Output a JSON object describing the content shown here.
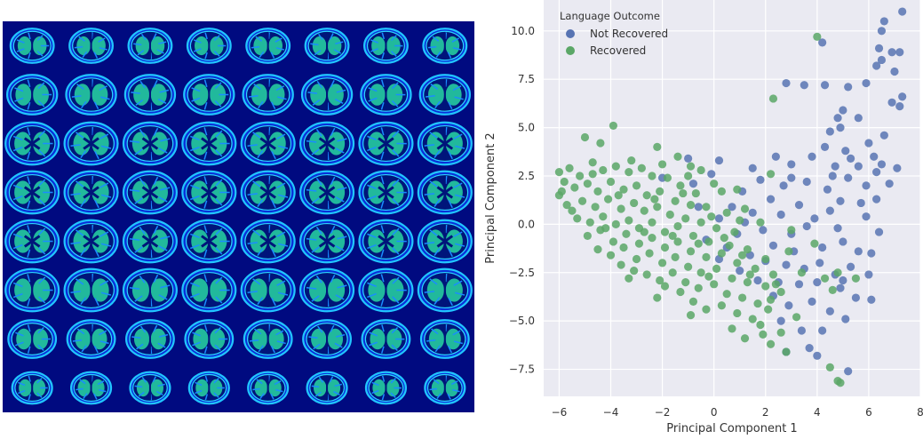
{
  "left_panel": {
    "montage": {
      "rows": 8,
      "cols": 8,
      "colormap": "jet"
    }
  },
  "chart_data": {
    "type": "scatter",
    "xlabel": "Principal Component 1",
    "ylabel": "Principal Component 2",
    "xlim": [
      -6.6,
      8.0
    ],
    "ylim": [
      -8.9,
      11.6
    ],
    "xticks": [
      -6,
      -4,
      -2,
      0,
      2,
      4,
      6,
      8
    ],
    "yticks": [
      -7.5,
      -5.0,
      -2.5,
      0.0,
      2.5,
      5.0,
      7.5,
      10.0
    ],
    "xtick_labels": [
      "−6",
      "−4",
      "−2",
      "0",
      "2",
      "4",
      "6",
      "8"
    ],
    "ytick_labels": [
      "−7.5",
      "−5.0",
      "−2.5",
      "0.0",
      "2.5",
      "5.0",
      "7.5",
      "10.0"
    ],
    "grid": true,
    "legend_title": "Language Outcome",
    "legend_position": "top-left",
    "series": [
      {
        "name": "Not Recovered",
        "color": "#5874b3",
        "points": [
          [
            7.3,
            11.0
          ],
          [
            6.6,
            10.5
          ],
          [
            6.5,
            10.0
          ],
          [
            6.4,
            9.1
          ],
          [
            6.9,
            8.9
          ],
          [
            7.2,
            8.9
          ],
          [
            6.5,
            8.5
          ],
          [
            6.3,
            8.2
          ],
          [
            7.0,
            7.9
          ],
          [
            4.2,
            9.4
          ],
          [
            5.9,
            7.3
          ],
          [
            5.2,
            7.1
          ],
          [
            7.3,
            6.6
          ],
          [
            3.5,
            7.2
          ],
          [
            2.8,
            7.3
          ],
          [
            4.3,
            7.2
          ],
          [
            6.9,
            6.3
          ],
          [
            7.2,
            6.1
          ],
          [
            5.0,
            5.9
          ],
          [
            4.8,
            5.5
          ],
          [
            5.6,
            5.5
          ],
          [
            4.9,
            5.0
          ],
          [
            4.5,
            4.8
          ],
          [
            4.3,
            4.0
          ],
          [
            6.6,
            4.6
          ],
          [
            6.0,
            4.2
          ],
          [
            3.8,
            3.5
          ],
          [
            5.1,
            3.8
          ],
          [
            5.3,
            3.4
          ],
          [
            6.2,
            3.5
          ],
          [
            3.0,
            3.1
          ],
          [
            2.4,
            3.5
          ],
          [
            6.5,
            3.1
          ],
          [
            4.7,
            3.0
          ],
          [
            7.1,
            2.9
          ],
          [
            6.3,
            2.7
          ],
          [
            1.5,
            2.9
          ],
          [
            0.2,
            3.3
          ],
          [
            1.8,
            2.3
          ],
          [
            2.7,
            2.0
          ],
          [
            3.6,
            2.2
          ],
          [
            5.2,
            2.4
          ],
          [
            5.9,
            2.0
          ],
          [
            4.4,
            1.8
          ],
          [
            6.8,
            2.1
          ],
          [
            1.1,
            1.7
          ],
          [
            -1.0,
            3.4
          ],
          [
            -0.1,
            2.6
          ],
          [
            -0.8,
            2.1
          ],
          [
            -2.0,
            2.4
          ],
          [
            2.2,
            1.3
          ],
          [
            3.3,
            1.0
          ],
          [
            4.9,
            1.2
          ],
          [
            5.7,
            1.1
          ],
          [
            0.7,
            0.9
          ],
          [
            1.5,
            0.6
          ],
          [
            2.6,
            0.5
          ],
          [
            3.9,
            0.3
          ],
          [
            4.5,
            0.7
          ],
          [
            5.9,
            0.4
          ],
          [
            0.2,
            0.3
          ],
          [
            -0.6,
            0.9
          ],
          [
            1.9,
            -0.3
          ],
          [
            3.0,
            -0.5
          ],
          [
            3.6,
            -0.1
          ],
          [
            4.8,
            -0.2
          ],
          [
            6.4,
            -0.4
          ],
          [
            0.9,
            -0.5
          ],
          [
            2.3,
            -1.1
          ],
          [
            3.1,
            -1.4
          ],
          [
            4.2,
            -1.2
          ],
          [
            5.0,
            -0.9
          ],
          [
            5.6,
            -1.4
          ],
          [
            6.1,
            -1.5
          ],
          [
            0.5,
            -1.2
          ],
          [
            1.4,
            -1.6
          ],
          [
            2.8,
            -2.1
          ],
          [
            3.5,
            -2.3
          ],
          [
            4.1,
            -2.0
          ],
          [
            4.7,
            -2.6
          ],
          [
            5.3,
            -2.2
          ],
          [
            6.0,
            -2.6
          ],
          [
            1.0,
            -2.4
          ],
          [
            1.7,
            -2.9
          ],
          [
            2.5,
            -3.0
          ],
          [
            3.3,
            -3.1
          ],
          [
            4.0,
            -3.0
          ],
          [
            4.9,
            -3.3
          ],
          [
            5.5,
            -3.8
          ],
          [
            6.1,
            -3.9
          ],
          [
            2.3,
            -3.7
          ],
          [
            2.9,
            -4.2
          ],
          [
            3.8,
            -4.0
          ],
          [
            4.5,
            -4.5
          ],
          [
            5.1,
            -4.9
          ],
          [
            2.6,
            -5.0
          ],
          [
            3.4,
            -5.5
          ],
          [
            3.7,
            -6.4
          ],
          [
            4.0,
            -6.8
          ],
          [
            2.8,
            -6.6
          ],
          [
            5.2,
            -7.6
          ],
          [
            4.2,
            -5.5
          ],
          [
            5.0,
            -2.9
          ],
          [
            2.0,
            -1.9
          ],
          [
            1.2,
            0.1
          ],
          [
            -0.3,
            -0.8
          ],
          [
            0.2,
            -1.8
          ],
          [
            6.3,
            1.3
          ],
          [
            5.6,
            3.0
          ],
          [
            4.6,
            2.5
          ],
          [
            3.0,
            2.4
          ]
        ]
      },
      {
        "name": "Recovered",
        "color": "#5ba767",
        "points": [
          [
            4.0,
            9.7
          ],
          [
            2.3,
            6.5
          ],
          [
            -3.9,
            5.1
          ],
          [
            -5.0,
            4.5
          ],
          [
            -4.4,
            4.2
          ],
          [
            -2.2,
            4.0
          ],
          [
            -1.4,
            3.5
          ],
          [
            -0.9,
            3.0
          ],
          [
            2.2,
            2.6
          ],
          [
            -6.0,
            2.7
          ],
          [
            -5.6,
            2.9
          ],
          [
            -5.2,
            2.5
          ],
          [
            -4.7,
            3.2
          ],
          [
            -4.3,
            2.8
          ],
          [
            -3.8,
            3.0
          ],
          [
            -3.3,
            2.7
          ],
          [
            -2.8,
            2.9
          ],
          [
            -2.4,
            2.5
          ],
          [
            -1.8,
            2.4
          ],
          [
            -1.3,
            2.0
          ],
          [
            -0.7,
            1.6
          ],
          [
            0.3,
            1.7
          ],
          [
            0.9,
            1.8
          ],
          [
            -5.9,
            1.7
          ],
          [
            -5.4,
            1.9
          ],
          [
            -4.9,
            2.1
          ],
          [
            -4.5,
            1.7
          ],
          [
            -4.0,
            2.2
          ],
          [
            -3.5,
            1.8
          ],
          [
            -3.0,
            2.0
          ],
          [
            -2.6,
            1.5
          ],
          [
            -2.1,
            1.7
          ],
          [
            -1.5,
            1.2
          ],
          [
            -0.9,
            1.0
          ],
          [
            -0.3,
            0.9
          ],
          [
            0.5,
            0.6
          ],
          [
            1.2,
            0.8
          ],
          [
            1.8,
            0.1
          ],
          [
            -5.7,
            1.0
          ],
          [
            -5.1,
            1.2
          ],
          [
            -4.6,
            0.9
          ],
          [
            -4.1,
            1.3
          ],
          [
            -3.6,
            0.8
          ],
          [
            -3.1,
            1.1
          ],
          [
            -2.7,
            0.7
          ],
          [
            -2.2,
            0.9
          ],
          [
            -1.7,
            0.5
          ],
          [
            -1.1,
            0.3
          ],
          [
            -0.5,
            0.1
          ],
          [
            0.1,
            -0.2
          ],
          [
            0.8,
            -0.4
          ],
          [
            -5.3,
            0.3
          ],
          [
            -4.8,
            0.1
          ],
          [
            -4.3,
            0.4
          ],
          [
            -3.8,
            0.0
          ],
          [
            -3.3,
            0.2
          ],
          [
            -2.9,
            -0.2
          ],
          [
            -2.4,
            0.1
          ],
          [
            -1.9,
            -0.4
          ],
          [
            -1.4,
            -0.1
          ],
          [
            -0.8,
            -0.6
          ],
          [
            -0.2,
            -0.9
          ],
          [
            0.6,
            -1.1
          ],
          [
            1.3,
            -1.3
          ],
          [
            2.0,
            -1.8
          ],
          [
            -4.9,
            -0.6
          ],
          [
            -4.4,
            -0.3
          ],
          [
            -3.9,
            -0.9
          ],
          [
            -3.4,
            -0.5
          ],
          [
            -2.9,
            -1.0
          ],
          [
            -2.4,
            -0.7
          ],
          [
            -1.9,
            -1.2
          ],
          [
            -1.4,
            -0.9
          ],
          [
            -0.9,
            -1.4
          ],
          [
            -0.3,
            -1.7
          ],
          [
            0.3,
            -1.5
          ],
          [
            0.9,
            -2.0
          ],
          [
            1.6,
            -2.3
          ],
          [
            2.3,
            -2.6
          ],
          [
            -4.5,
            -1.3
          ],
          [
            -4.0,
            -1.6
          ],
          [
            -3.5,
            -1.2
          ],
          [
            -3.0,
            -1.8
          ],
          [
            -2.5,
            -1.5
          ],
          [
            -2.0,
            -2.0
          ],
          [
            -1.5,
            -1.7
          ],
          [
            -1.0,
            -2.2
          ],
          [
            -0.5,
            -2.5
          ],
          [
            0.1,
            -2.3
          ],
          [
            0.7,
            -2.8
          ],
          [
            1.3,
            -3.0
          ],
          [
            2.0,
            -3.2
          ],
          [
            2.6,
            -3.5
          ],
          [
            -3.6,
            -2.1
          ],
          [
            -3.1,
            -2.4
          ],
          [
            -2.6,
            -2.6
          ],
          [
            -2.1,
            -2.9
          ],
          [
            -1.6,
            -2.5
          ],
          [
            -1.1,
            -3.0
          ],
          [
            -0.6,
            -3.3
          ],
          [
            0.0,
            -3.1
          ],
          [
            0.5,
            -3.6
          ],
          [
            1.1,
            -3.8
          ],
          [
            1.7,
            -4.1
          ],
          [
            2.2,
            -3.9
          ],
          [
            -2.2,
            -3.8
          ],
          [
            -1.3,
            -3.5
          ],
          [
            -0.8,
            -4.0
          ],
          [
            -0.3,
            -4.4
          ],
          [
            0.3,
            -4.2
          ],
          [
            0.9,
            -4.6
          ],
          [
            1.5,
            -4.9
          ],
          [
            2.1,
            -4.4
          ],
          [
            1.8,
            -5.2
          ],
          [
            1.9,
            -5.7
          ],
          [
            2.2,
            -6.2
          ],
          [
            2.8,
            -6.6
          ],
          [
            4.8,
            -8.1
          ],
          [
            4.9,
            -8.2
          ],
          [
            4.5,
            -7.4
          ],
          [
            -4.7,
            2.6
          ],
          [
            -5.8,
            2.2
          ],
          [
            -3.2,
            3.3
          ],
          [
            -2.0,
            3.1
          ],
          [
            -1.0,
            2.5
          ],
          [
            0.0,
            2.1
          ],
          [
            -0.5,
            2.8
          ],
          [
            -3.7,
            1.5
          ],
          [
            -2.3,
            1.3
          ],
          [
            -1.2,
            1.6
          ],
          [
            -0.1,
            0.4
          ],
          [
            1.0,
            0.2
          ],
          [
            -4.2,
            -0.2
          ],
          [
            -2.7,
            -0.4
          ],
          [
            -1.6,
            -0.6
          ],
          [
            -0.6,
            -1.0
          ],
          [
            0.4,
            -0.7
          ],
          [
            1.1,
            -1.6
          ],
          [
            -3.3,
            -2.8
          ],
          [
            -1.9,
            -3.2
          ],
          [
            -0.2,
            -2.7
          ],
          [
            1.4,
            -2.6
          ],
          [
            2.4,
            -3.1
          ],
          [
            3.4,
            -2.5
          ],
          [
            2.9,
            -1.4
          ],
          [
            4.8,
            -2.5
          ],
          [
            4.6,
            -3.4
          ],
          [
            5.5,
            -2.8
          ],
          [
            3.2,
            -4.8
          ],
          [
            2.6,
            -5.6
          ],
          [
            3.0,
            -0.3
          ],
          [
            3.9,
            -1.0
          ],
          [
            4.3,
            -2.8
          ],
          [
            -0.9,
            -4.7
          ],
          [
            0.7,
            -5.4
          ],
          [
            1.2,
            -5.9
          ],
          [
            -5.5,
            0.7
          ],
          [
            -6.0,
            1.5
          ]
        ]
      }
    ]
  }
}
